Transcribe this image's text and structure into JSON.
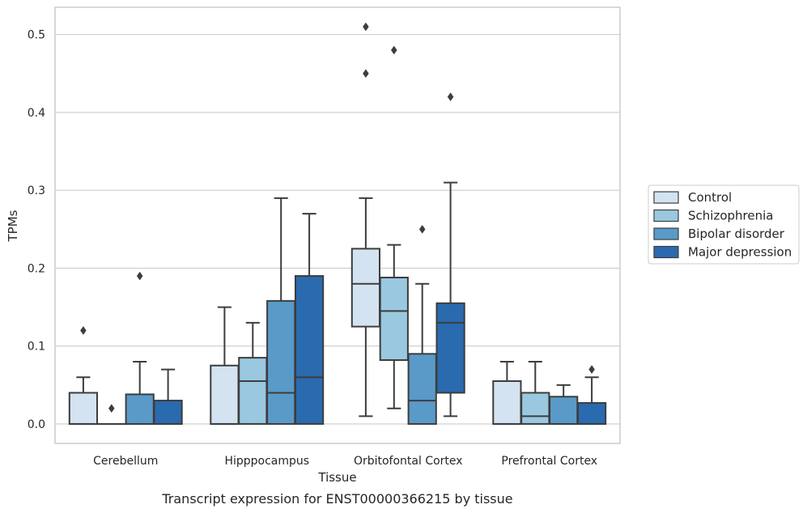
{
  "chart_data": {
    "type": "box",
    "xlabel": "Tissue",
    "ylabel": "TPMs",
    "caption": "Transcript expression for ENST00000366215 by tissue",
    "ylim": [
      -0.025,
      0.535
    ],
    "yticks": [
      0.0,
      0.1,
      0.2,
      0.3,
      0.4,
      0.5
    ],
    "ytick_labels": [
      "0.0",
      "0.1",
      "0.2",
      "0.3",
      "0.4",
      "0.5"
    ],
    "grid": "horizontal",
    "legend_position": "right",
    "categories": [
      "Cerebellum",
      "Hipppocampus",
      "Orbitofontal Cortex",
      "Prefrontal Cortex"
    ],
    "series": [
      {
        "name": "Control",
        "color": "#d4e3f1",
        "boxes": [
          {
            "whisker_low": 0.0,
            "q1": 0.0,
            "median": 0.0,
            "q3": 0.04,
            "whisker_high": 0.06,
            "outliers": [
              0.12
            ]
          },
          {
            "whisker_low": 0.0,
            "q1": 0.0,
            "median": 0.0,
            "q3": 0.075,
            "whisker_high": 0.15,
            "outliers": []
          },
          {
            "whisker_low": 0.01,
            "q1": 0.125,
            "median": 0.18,
            "q3": 0.225,
            "whisker_high": 0.29,
            "outliers": [
              0.45,
              0.51
            ]
          },
          {
            "whisker_low": 0.0,
            "q1": 0.0,
            "median": 0.0,
            "q3": 0.055,
            "whisker_high": 0.08,
            "outliers": []
          }
        ]
      },
      {
        "name": "Schizophrenia",
        "color": "#9ac8e0",
        "boxes": [
          {
            "whisker_low": 0.0,
            "q1": 0.0,
            "median": 0.0,
            "q3": 0.0,
            "whisker_high": 0.0,
            "outliers": [
              0.02
            ]
          },
          {
            "whisker_low": 0.0,
            "q1": 0.0,
            "median": 0.055,
            "q3": 0.085,
            "whisker_high": 0.13,
            "outliers": []
          },
          {
            "whisker_low": 0.02,
            "q1": 0.082,
            "median": 0.145,
            "q3": 0.188,
            "whisker_high": 0.23,
            "outliers": [
              0.48
            ]
          },
          {
            "whisker_low": 0.0,
            "q1": 0.0,
            "median": 0.01,
            "q3": 0.04,
            "whisker_high": 0.08,
            "outliers": []
          }
        ]
      },
      {
        "name": "Bipolar disorder",
        "color": "#5a9ac8",
        "boxes": [
          {
            "whisker_low": 0.0,
            "q1": 0.0,
            "median": 0.0,
            "q3": 0.038,
            "whisker_high": 0.08,
            "outliers": [
              0.19
            ]
          },
          {
            "whisker_low": 0.0,
            "q1": 0.0,
            "median": 0.04,
            "q3": 0.158,
            "whisker_high": 0.29,
            "outliers": []
          },
          {
            "whisker_low": 0.0,
            "q1": 0.0,
            "median": 0.03,
            "q3": 0.09,
            "whisker_high": 0.18,
            "outliers": [
              0.25
            ]
          },
          {
            "whisker_low": 0.0,
            "q1": 0.0,
            "median": 0.0,
            "q3": 0.035,
            "whisker_high": 0.05,
            "outliers": []
          }
        ]
      },
      {
        "name": "Major depression",
        "color": "#2a6aaf",
        "boxes": [
          {
            "whisker_low": 0.0,
            "q1": 0.0,
            "median": 0.0,
            "q3": 0.03,
            "whisker_high": 0.07,
            "outliers": []
          },
          {
            "whisker_low": 0.0,
            "q1": 0.0,
            "median": 0.06,
            "q3": 0.19,
            "whisker_high": 0.27,
            "outliers": []
          },
          {
            "whisker_low": 0.01,
            "q1": 0.04,
            "median": 0.13,
            "q3": 0.155,
            "whisker_high": 0.31,
            "outliers": [
              0.42
            ]
          },
          {
            "whisker_low": 0.0,
            "q1": 0.0,
            "median": 0.0,
            "q3": 0.027,
            "whisker_high": 0.06,
            "outliers": [
              0.07
            ]
          }
        ]
      }
    ]
  }
}
